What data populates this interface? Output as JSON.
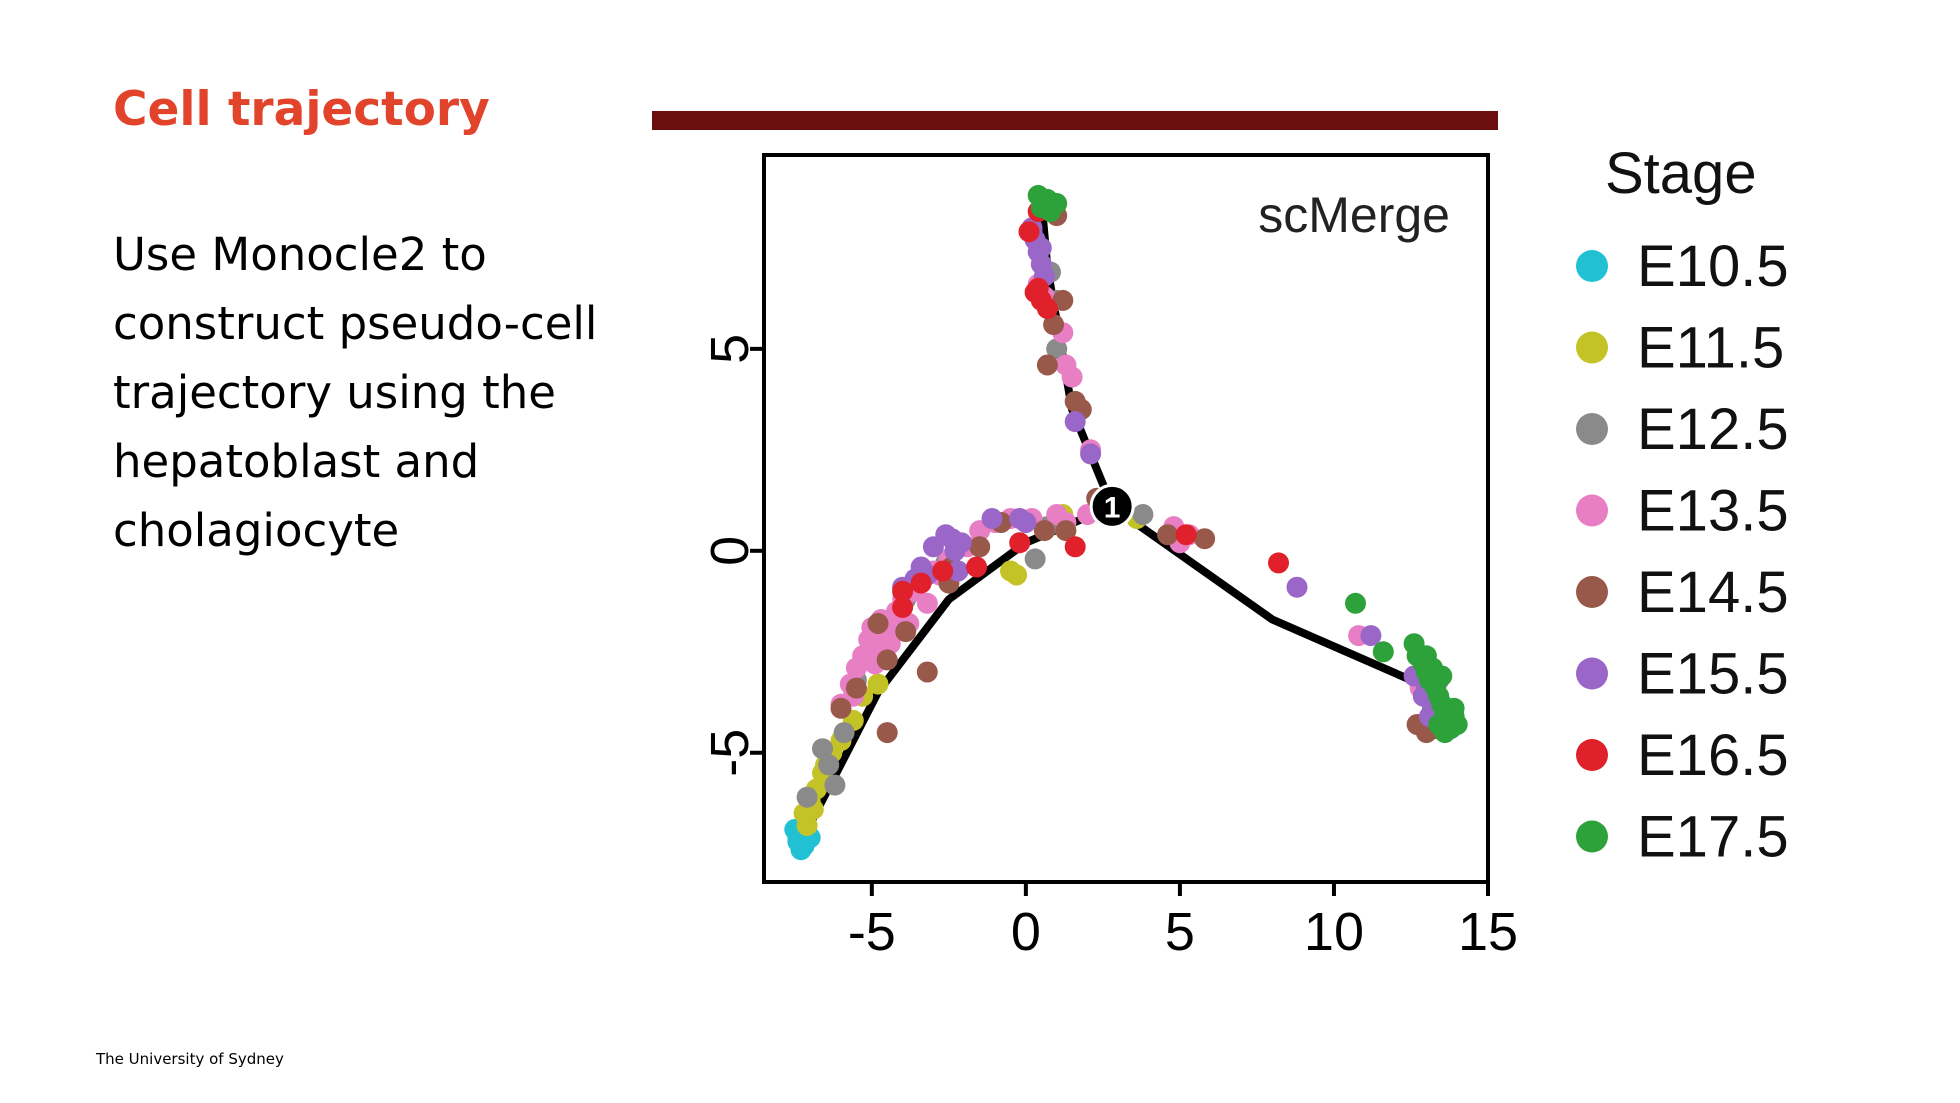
{
  "slide": {
    "title": "Cell trajectory",
    "body": "Use Monocle2 to construct pseudo-cell trajectory using the hepatoblast and cholagiocyte",
    "footer": "The University of Sydney",
    "title_color": "#e1432b",
    "accent_color": "#6b0e0e"
  },
  "chart_data": {
    "type": "scatter",
    "title": "",
    "annotation": "scMerge",
    "xlabel": "",
    "ylabel": "",
    "xlim": [
      -8.5,
      15
    ],
    "ylim": [
      -8.2,
      9.8
    ],
    "xticks": [
      -5,
      0,
      5,
      10,
      15
    ],
    "yticks": [
      -5,
      0,
      5
    ],
    "grid": false,
    "legend": {
      "title": "Stage",
      "position": "right"
    },
    "branch_point_label": "1",
    "trajectory": {
      "branch_point": [
        2.8,
        1.1
      ],
      "branches": [
        [
          [
            2.8,
            1.1
          ],
          [
            1.5,
            3.5
          ],
          [
            0.7,
            7.0
          ],
          [
            0.5,
            8.7
          ]
        ],
        [
          [
            2.8,
            1.1
          ],
          [
            0.0,
            0.2
          ],
          [
            -2.5,
            -1.2
          ],
          [
            -4.8,
            -3.5
          ],
          [
            -7.3,
            -7.2
          ]
        ],
        [
          [
            2.8,
            1.1
          ],
          [
            8.0,
            -1.7
          ],
          [
            12.8,
            -3.3
          ],
          [
            13.6,
            -4.2
          ]
        ]
      ]
    },
    "series": [
      {
        "name": "E10.5",
        "color": "#21c0d3",
        "points": [
          [
            -7.4,
            -7.1
          ],
          [
            -7.2,
            -7.3
          ],
          [
            -7.5,
            -6.9
          ],
          [
            -7.1,
            -7.0
          ],
          [
            -7.3,
            -7.4
          ],
          [
            -7.4,
            -7.2
          ],
          [
            -7.0,
            -7.1
          ]
        ]
      },
      {
        "name": "E11.5",
        "color": "#c3c328",
        "points": [
          [
            -7.2,
            -6.5
          ],
          [
            -7.0,
            -6.2
          ],
          [
            -6.9,
            -6.4
          ],
          [
            -6.8,
            -5.9
          ],
          [
            -6.6,
            -5.5
          ],
          [
            -6.3,
            -5.0
          ],
          [
            -6.0,
            -4.7
          ],
          [
            -5.6,
            -4.2
          ],
          [
            -5.3,
            -3.6
          ],
          [
            -4.8,
            -3.3
          ],
          [
            -4.6,
            -2.6
          ],
          [
            -2.4,
            -0.4
          ],
          [
            -0.5,
            -0.5
          ],
          [
            -0.3,
            -0.6
          ],
          [
            3.6,
            0.8
          ],
          [
            1.2,
            0.9
          ],
          [
            -7.1,
            -6.8
          ],
          [
            -6.5,
            -5.3
          ]
        ]
      },
      {
        "name": "E12.5",
        "color": "#8a8a8a",
        "points": [
          [
            -6.6,
            -4.9
          ],
          [
            -6.4,
            -5.3
          ],
          [
            -6.2,
            -5.8
          ],
          [
            -5.9,
            -4.5
          ],
          [
            -7.1,
            -6.1
          ],
          [
            -5.5,
            -3.2
          ],
          [
            -4.5,
            -2.2
          ],
          [
            -3.9,
            -1.2
          ],
          [
            -2.6,
            -0.3
          ],
          [
            0.7,
            0.6
          ],
          [
            3.8,
            0.9
          ],
          [
            1.0,
            6.2
          ],
          [
            1.0,
            5.0
          ],
          [
            0.8,
            6.9
          ],
          [
            0.3,
            -0.2
          ]
        ]
      },
      {
        "name": "E13.5",
        "color": "#e87ec4",
        "points": [
          [
            -6.0,
            -3.8
          ],
          [
            -5.7,
            -3.3
          ],
          [
            -5.5,
            -2.9
          ],
          [
            -5.3,
            -2.6
          ],
          [
            -5.1,
            -2.2
          ],
          [
            -5.0,
            -1.9
          ],
          [
            -4.8,
            -2.4
          ],
          [
            -4.7,
            -1.7
          ],
          [
            -4.5,
            -2.1
          ],
          [
            -4.3,
            -1.9
          ],
          [
            -4.2,
            -1.5
          ],
          [
            -4.0,
            -1.2
          ],
          [
            -3.8,
            -1.8
          ],
          [
            -3.6,
            -1.0
          ],
          [
            -3.4,
            -0.7
          ],
          [
            -3.2,
            -1.3
          ],
          [
            -3.0,
            -0.5
          ],
          [
            -2.8,
            -0.6
          ],
          [
            -2.5,
            -0.2
          ],
          [
            -2.2,
            0.1
          ],
          [
            -1.9,
            0.1
          ],
          [
            -1.5,
            0.5
          ],
          [
            -1.0,
            0.7
          ],
          [
            -0.5,
            0.8
          ],
          [
            0.2,
            0.8
          ],
          [
            1.0,
            0.9
          ],
          [
            1.3,
            0.7
          ],
          [
            2.0,
            0.9
          ],
          [
            4.8,
            0.6
          ],
          [
            5.0,
            0.2
          ],
          [
            5.3,
            0.4
          ],
          [
            10.8,
            -2.1
          ],
          [
            12.8,
            -3.4
          ],
          [
            13.2,
            -3.6
          ],
          [
            2.1,
            2.5
          ],
          [
            1.5,
            4.3
          ],
          [
            1.3,
            4.6
          ],
          [
            1.2,
            5.4
          ],
          [
            0.6,
            6.3
          ],
          [
            0.4,
            6.6
          ],
          [
            -5.6,
            -3.6
          ],
          [
            -4.9,
            -2.8
          ],
          [
            -4.4,
            -2.3
          ]
        ]
      },
      {
        "name": "E14.5",
        "color": "#98584a",
        "points": [
          [
            -6.0,
            -3.9
          ],
          [
            -4.5,
            -4.5
          ],
          [
            -3.2,
            -3.0
          ],
          [
            -5.5,
            -3.4
          ],
          [
            -4.8,
            -1.8
          ],
          [
            -4.5,
            -2.7
          ],
          [
            -3.9,
            -2.0
          ],
          [
            -2.4,
            -0.4
          ],
          [
            -2.5,
            -0.8
          ],
          [
            -1.5,
            0.1
          ],
          [
            -0.8,
            0.7
          ],
          [
            0.6,
            0.5
          ],
          [
            1.3,
            0.5
          ],
          [
            2.3,
            1.3
          ],
          [
            4.6,
            0.4
          ],
          [
            5.8,
            0.3
          ],
          [
            13.0,
            -4.5
          ],
          [
            13.3,
            -4.4
          ],
          [
            12.7,
            -4.3
          ],
          [
            1.2,
            6.2
          ],
          [
            0.9,
            5.6
          ],
          [
            1.6,
            3.7
          ],
          [
            1.8,
            3.5
          ],
          [
            1.0,
            8.3
          ],
          [
            0.7,
            4.6
          ]
        ]
      },
      {
        "name": "E15.5",
        "color": "#9a66c8",
        "points": [
          [
            0.2,
            8.0
          ],
          [
            0.3,
            7.7
          ],
          [
            0.4,
            7.4
          ],
          [
            0.5,
            7.1
          ],
          [
            0.6,
            6.8
          ],
          [
            0.2,
            7.9
          ],
          [
            0.5,
            7.5
          ],
          [
            2.1,
            2.4
          ],
          [
            1.6,
            3.2
          ],
          [
            -2.4,
            0.3
          ],
          [
            -2.6,
            0.4
          ],
          [
            -2.3,
            0.0
          ],
          [
            -3.0,
            0.1
          ],
          [
            -3.2,
            -0.6
          ],
          [
            -3.4,
            -0.4
          ],
          [
            -3.6,
            -0.7
          ],
          [
            -4.0,
            -0.9
          ],
          [
            -2.1,
            0.2
          ],
          [
            -1.1,
            0.8
          ],
          [
            -0.2,
            0.8
          ],
          [
            0.0,
            0.7
          ],
          [
            -2.2,
            -0.5
          ],
          [
            8.8,
            -0.9
          ],
          [
            11.2,
            -2.1
          ],
          [
            12.6,
            -3.1
          ],
          [
            12.9,
            -3.6
          ],
          [
            13.2,
            -3.9
          ],
          [
            13.5,
            -3.8
          ],
          [
            13.8,
            -4.3
          ],
          [
            13.0,
            -3.4
          ],
          [
            13.4,
            -3.2
          ],
          [
            13.1,
            -4.1
          ]
        ]
      },
      {
        "name": "E16.5",
        "color": "#e0202a",
        "points": [
          [
            0.4,
            8.4
          ],
          [
            0.1,
            7.9
          ],
          [
            0.3,
            6.4
          ],
          [
            0.5,
            6.2
          ],
          [
            0.7,
            6.0
          ],
          [
            0.4,
            6.5
          ],
          [
            -4.0,
            -1.0
          ],
          [
            -4.0,
            -1.4
          ],
          [
            -3.4,
            -0.8
          ],
          [
            -2.7,
            -0.5
          ],
          [
            -1.6,
            -0.4
          ],
          [
            1.6,
            0.1
          ],
          [
            5.2,
            0.4
          ],
          [
            8.2,
            -0.3
          ],
          [
            -0.2,
            0.2
          ]
        ]
      },
      {
        "name": "E17.5",
        "color": "#2ea23a",
        "points": [
          [
            0.4,
            8.8
          ],
          [
            0.7,
            8.7
          ],
          [
            1.0,
            8.6
          ],
          [
            0.5,
            8.5
          ],
          [
            0.8,
            8.4
          ],
          [
            10.7,
            -1.3
          ],
          [
            11.6,
            -2.5
          ],
          [
            12.6,
            -2.3
          ],
          [
            12.7,
            -2.6
          ],
          [
            12.9,
            -2.8
          ],
          [
            13.0,
            -3.0
          ],
          [
            13.1,
            -3.2
          ],
          [
            13.3,
            -3.4
          ],
          [
            13.4,
            -3.6
          ],
          [
            13.5,
            -3.8
          ],
          [
            13.6,
            -4.0
          ],
          [
            13.7,
            -4.2
          ],
          [
            13.8,
            -4.4
          ],
          [
            13.9,
            -4.1
          ],
          [
            14.0,
            -4.3
          ],
          [
            13.2,
            -2.9
          ],
          [
            13.5,
            -3.1
          ],
          [
            13.4,
            -4.3
          ],
          [
            13.6,
            -4.5
          ],
          [
            13.9,
            -3.9
          ],
          [
            13.0,
            -2.6
          ]
        ]
      }
    ]
  }
}
